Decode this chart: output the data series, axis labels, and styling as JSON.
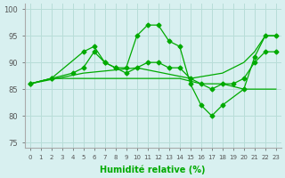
{
  "xlabel": "Humidité relative (%)",
  "xlim": [
    -0.5,
    23.5
  ],
  "ylim": [
    74,
    101
  ],
  "yticks": [
    75,
    80,
    85,
    90,
    95,
    100
  ],
  "xticks": [
    0,
    1,
    2,
    3,
    4,
    5,
    6,
    7,
    8,
    9,
    10,
    11,
    12,
    13,
    14,
    15,
    16,
    17,
    18,
    19,
    20,
    21,
    22,
    23
  ],
  "bg_color": "#d8f0f0",
  "grid_color": "#b8ddd8",
  "line_color": "#00aa00",
  "lines": [
    {
      "x": [
        0,
        2,
        5,
        6,
        7,
        8,
        9,
        10,
        11,
        12,
        13,
        14,
        15,
        16,
        17,
        18,
        20,
        21,
        22,
        23
      ],
      "y": [
        86,
        87,
        92,
        93,
        90,
        89,
        89,
        95,
        97,
        97,
        94,
        93,
        86,
        82,
        80,
        82,
        85,
        91,
        95,
        95
      ]
    },
    {
      "x": [
        0,
        5,
        10,
        15,
        18,
        20,
        21,
        22,
        23
      ],
      "y": [
        86,
        88,
        89,
        87,
        88,
        90,
        92,
        95,
        95
      ]
    },
    {
      "x": [
        0,
        2,
        4,
        5,
        6,
        7,
        8,
        9,
        10,
        11,
        12,
        13,
        14,
        15,
        16,
        17,
        18,
        19,
        20,
        21,
        22,
        23
      ],
      "y": [
        86,
        87,
        88,
        89,
        92,
        90,
        89,
        88,
        89,
        90,
        90,
        89,
        89,
        87,
        86,
        85,
        86,
        86,
        87,
        90,
        92,
        92
      ]
    },
    {
      "x": [
        0,
        2,
        4,
        6,
        8,
        10,
        12,
        14,
        16,
        18,
        20,
        22,
        23
      ],
      "y": [
        86,
        87,
        87,
        87,
        87,
        87,
        87,
        87,
        86,
        86,
        85,
        85,
        85
      ]
    }
  ]
}
